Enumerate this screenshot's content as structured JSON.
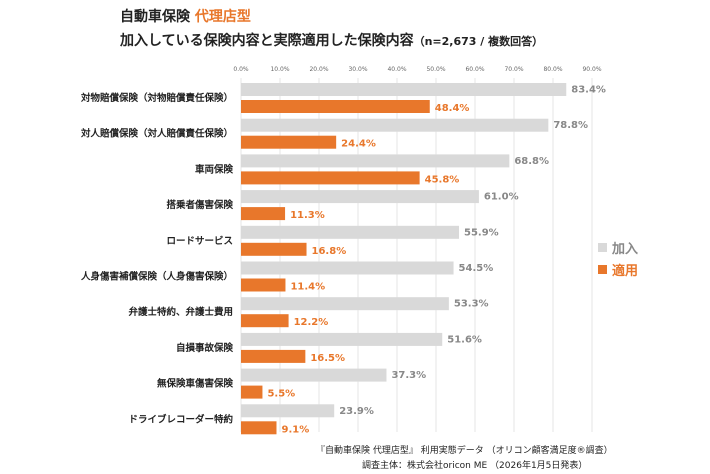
{
  "header": {
    "title_main": "自動車保険 ",
    "title_accent": "代理店型",
    "subtitle": "加入している保険内容と実際適用した保険内容",
    "subtitle_note": "（n=2,673 / 複数回答）"
  },
  "legend": {
    "joined": "加入",
    "applied": "適用"
  },
  "footer": {
    "source": "『自動車保険 代理店型』 利用実態データ （オリコン顧客満足度®調査）",
    "publisher": "調査主体：株式会社oricon ME （2026年1月5日発表）"
  },
  "colors": {
    "joined": "#d9d9d9",
    "applied": "#e8772b",
    "joined_label": "#888888",
    "applied_label": "#e8772b",
    "grid": "#e6e6e6"
  },
  "chart_data": {
    "type": "bar",
    "orientation": "horizontal",
    "categories": [
      "対物賠償保険（対物賠償責任保険）",
      "対人賠償保険（対人賠償責任保険）",
      "車両保険",
      "搭乗者傷害保険",
      "ロードサービス",
      "人身傷害補償保険（人身傷害保険）",
      "弁護士特約、弁護士費用",
      "自損事故保険",
      "無保険車傷害保険",
      "ドライブレコーダー特約"
    ],
    "series": [
      {
        "name": "加入",
        "values": [
          83.4,
          78.8,
          68.8,
          61.0,
          55.9,
          54.5,
          53.3,
          51.6,
          37.3,
          23.9
        ]
      },
      {
        "name": "適用",
        "values": [
          48.4,
          24.4,
          45.8,
          11.3,
          16.8,
          11.4,
          12.2,
          16.5,
          5.5,
          9.1
        ]
      }
    ],
    "xticks": [
      "0.0%",
      "10.0%",
      "20.0%",
      "30.0%",
      "40.0%",
      "50.0%",
      "60.0%",
      "70.0%",
      "80.0%",
      "90.0%"
    ],
    "xlim": [
      0,
      90
    ],
    "value_suffix": "%",
    "legend_position": "right"
  }
}
